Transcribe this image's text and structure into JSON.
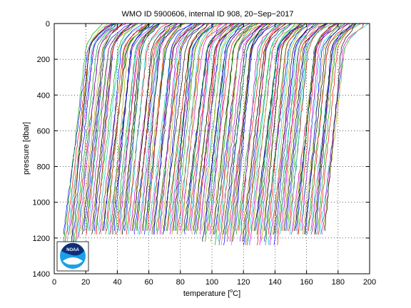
{
  "chart_data": {
    "type": "line",
    "title": "WMO ID 5900606, internal ID 908, 20−Sep−2017",
    "xlabel": "temperature [°C]",
    "xlabel_main": "temperature [",
    "xlabel_degree": "o",
    "xlabel_unit": "C]",
    "ylabel": "pressure [dbar]",
    "xlim": [
      0,
      200
    ],
    "ylim": [
      1400,
      0
    ],
    "y_reversed": true,
    "grid": "dotted",
    "x_ticks": [
      0,
      20,
      40,
      60,
      80,
      100,
      120,
      140,
      160,
      180,
      200
    ],
    "y_ticks": [
      0,
      200,
      400,
      600,
      800,
      1000,
      1200,
      1400
    ],
    "x_tick_labels": [
      "0",
      "20",
      "40",
      "60",
      "80",
      "100",
      "120",
      "140",
      "160",
      "180",
      "200"
    ],
    "y_tick_labels": [
      "0",
      "200",
      "400",
      "600",
      "800",
      "1000",
      "1200",
      "1400"
    ],
    "profiles": {
      "description": "Waterfall of offset temperature profiles, one per cycle",
      "count": 182,
      "offset_step": 0.915,
      "first_bottom_x": 5.5,
      "pressure_max_typical": 1180,
      "pressure_max_late": 1240,
      "colors": [
        "#0000ff",
        "#00aa00",
        "#ff0000",
        "#00cccc",
        "#cc00cc",
        "#aaaa00",
        "#000000"
      ]
    },
    "logo": {
      "name": "noaa-logo",
      "text": "NOAA"
    }
  }
}
